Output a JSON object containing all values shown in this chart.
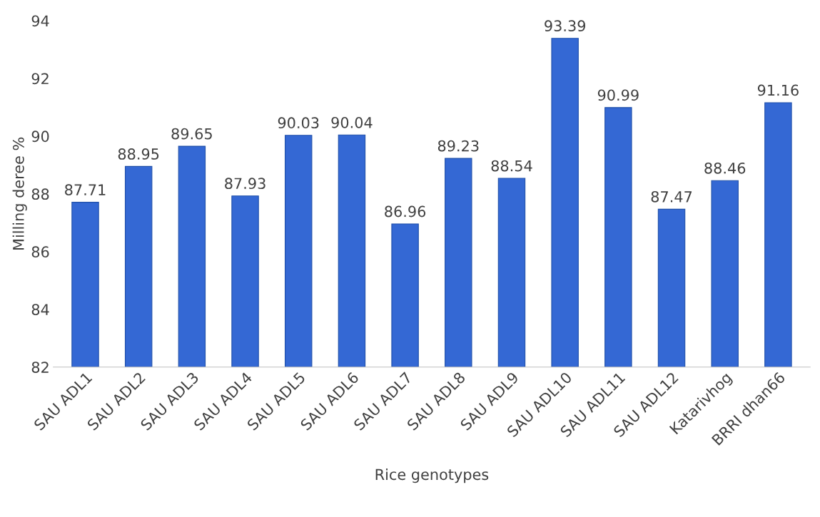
{
  "chart_data": {
    "type": "bar",
    "categories": [
      "SAU ADL1",
      "SAU ADL2",
      "SAU ADL3",
      "SAU ADL4",
      "SAU ADL5",
      "SAU ADL6",
      "SAU ADL7",
      "SAU ADL8",
      "SAU ADL9",
      "SAU ADL10",
      "SAU ADL11",
      "SAU ADL12",
      "Katarivhog",
      "BRRI dhan66"
    ],
    "values": [
      87.71,
      88.95,
      89.65,
      87.93,
      90.03,
      90.04,
      86.96,
      89.23,
      88.54,
      93.39,
      90.99,
      87.47,
      88.46,
      91.16
    ],
    "color": "#3468d4",
    "xlabel": "Rice genotypes",
    "ylabel": "Milling deree %",
    "ylim": [
      82,
      94
    ],
    "yticks": [
      82,
      84,
      86,
      88,
      90,
      92,
      94
    ],
    "data_labels": true,
    "grid": false,
    "legend": false
  }
}
